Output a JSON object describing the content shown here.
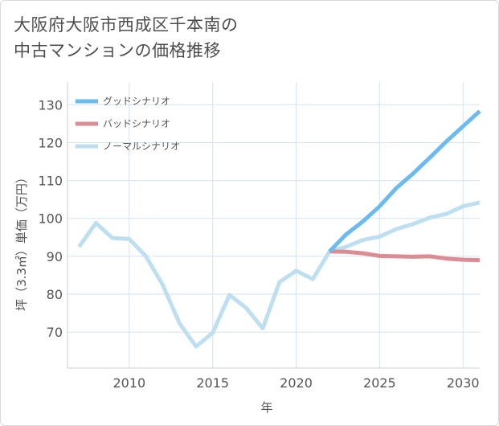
{
  "title_line1": "大阪府大阪市西成区千本南の",
  "title_line2": "中古マンションの価格推移",
  "chart_data": {
    "type": "line",
    "xlabel": "年",
    "ylabel": "坪（3.3㎡）単価（万円）",
    "xlim": [
      2006.3,
      2031
    ],
    "ylim": [
      60.5,
      136
    ],
    "xticks": [
      2010,
      2015,
      2020,
      2025,
      2030
    ],
    "yticks": [
      70,
      80,
      90,
      100,
      110,
      120,
      130
    ],
    "grid": true,
    "legend_position": "top-left",
    "series": [
      {
        "name": "グッドシナリオ",
        "color": "#6bbbef",
        "x": [
          2022,
          2023,
          2024,
          2025,
          2026,
          2027,
          2028,
          2029,
          2030,
          2031
        ],
        "y": [
          91.3,
          95.8,
          99.2,
          103.2,
          108.0,
          111.8,
          116.0,
          120.3,
          124.3,
          128.3
        ]
      },
      {
        "name": "バッドシナリオ",
        "color": "#dc8c93",
        "x": [
          2022,
          2023,
          2024,
          2025,
          2026,
          2027,
          2028,
          2029,
          2030,
          2031
        ],
        "y": [
          91.3,
          91.2,
          90.8,
          90.1,
          90.0,
          89.9,
          90.0,
          89.4,
          89.1,
          89.0
        ]
      },
      {
        "name": "ノーマルシナリオ",
        "color": "#bedff0",
        "x": [
          2007,
          2008,
          2009,
          2010,
          2011,
          2012,
          2013,
          2014,
          2015,
          2016,
          2017,
          2018,
          2019,
          2020,
          2021,
          2022,
          2023,
          2024,
          2025,
          2026,
          2027,
          2028,
          2029,
          2030,
          2031
        ],
        "y": [
          92.5,
          98.8,
          94.8,
          94.6,
          90.0,
          82.5,
          72.4,
          66.2,
          69.8,
          79.8,
          76.4,
          71.0,
          83.2,
          86.2,
          84.0,
          91.3,
          92.5,
          94.3,
          95.2,
          97.2,
          98.5,
          100.2,
          101.2,
          103.2,
          104.2
        ]
      }
    ]
  }
}
